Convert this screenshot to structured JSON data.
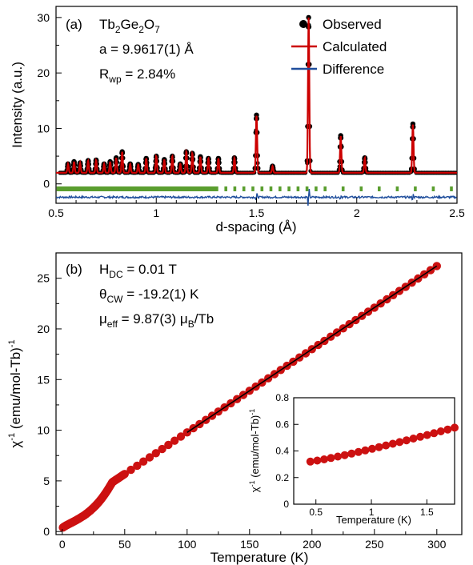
{
  "colors": {
    "observed": "#000000",
    "calculated": "#cc0000",
    "difference": "#1f4e9c",
    "bragg": "#5a9e2f",
    "chi_points": "#cc1111",
    "fit_line": "#000000"
  },
  "panel_a": {
    "label": "(a)",
    "compound": "Tb2Ge2O7",
    "lattice": "a = 9.9617(1) Å",
    "rwp": "Rwp = 2.84%",
    "legend": {
      "observed": "Observed",
      "calculated": "Calculated",
      "difference": "Difference"
    }
  },
  "panel_b": {
    "label": "(b)",
    "hdc": "HDC = 0.01 T",
    "theta": "θCW = -19.2(1) K",
    "mueff": "μeff = 9.87(3) μB/Tb"
  },
  "chart_data": [
    {
      "type": "line",
      "xlabel": "d-spacing (Å)",
      "ylabel": "Intensity (a.u.)",
      "xlim": [
        0.5,
        2.5
      ],
      "ylim": [
        -3.5,
        32
      ],
      "xticks": [
        0.5,
        1,
        1.5,
        2,
        2.5
      ],
      "yticks": [
        0,
        10,
        20,
        30
      ],
      "background": 2.0,
      "peaks": [
        {
          "d": 0.56,
          "h": 1.6
        },
        {
          "d": 0.59,
          "h": 2.0
        },
        {
          "d": 0.62,
          "h": 1.8
        },
        {
          "d": 0.66,
          "h": 2.2
        },
        {
          "d": 0.7,
          "h": 2.3
        },
        {
          "d": 0.74,
          "h": 1.6
        },
        {
          "d": 0.77,
          "h": 2.0
        },
        {
          "d": 0.8,
          "h": 2.7
        },
        {
          "d": 0.83,
          "h": 3.8
        },
        {
          "d": 0.87,
          "h": 1.6
        },
        {
          "d": 0.91,
          "h": 1.5
        },
        {
          "d": 0.95,
          "h": 2.6
        },
        {
          "d": 1.0,
          "h": 3.0
        },
        {
          "d": 1.04,
          "h": 2.4
        },
        {
          "d": 1.08,
          "h": 3.0
        },
        {
          "d": 1.12,
          "h": 1.6
        },
        {
          "d": 1.15,
          "h": 3.8
        },
        {
          "d": 1.18,
          "h": 3.5
        },
        {
          "d": 1.22,
          "h": 2.9
        },
        {
          "d": 1.26,
          "h": 2.6
        },
        {
          "d": 1.31,
          "h": 2.6
        },
        {
          "d": 1.39,
          "h": 2.7
        },
        {
          "d": 1.5,
          "h": 10.4
        },
        {
          "d": 1.58,
          "h": 1.2
        },
        {
          "d": 1.76,
          "h": 28.0
        },
        {
          "d": 1.92,
          "h": 6.7
        },
        {
          "d": 2.04,
          "h": 2.7
        },
        {
          "d": 2.28,
          "h": 8.8
        }
      ],
      "bragg_marks_y": -0.9,
      "difference_offset": -2.4,
      "series": [
        {
          "name": "Observed"
        },
        {
          "name": "Calculated"
        },
        {
          "name": "Difference"
        }
      ]
    },
    {
      "type": "scatter",
      "xlabel": "Temperature (K)",
      "ylabel": "χ-1 (emu/mol-Tb)-1",
      "xlim": [
        -5,
        320
      ],
      "ylim": [
        -0.3,
        27.5
      ],
      "xticks": [
        0,
        50,
        100,
        150,
        200,
        250,
        300
      ],
      "yticks": [
        0,
        5,
        10,
        15,
        20,
        25
      ],
      "curie_weiss": {
        "C": 12.18,
        "theta": -19.2
      },
      "fit_range": [
        100,
        300
      ],
      "low_t_dense_until": 50,
      "point_spacing_high": 5,
      "inset": {
        "xlabel": "Temperature (K)",
        "ylabel": "χ-1 (emu/mol-Tb)-1",
        "xlim": [
          0.3,
          1.75
        ],
        "ylim": [
          0,
          0.8
        ],
        "xticks": [
          0.5,
          1,
          1.5
        ],
        "yticks": [
          0,
          0.2,
          0.4,
          0.6,
          0.8
        ],
        "x_start": 0.45,
        "x_end": 1.75,
        "y_start": 0.32,
        "y_end": 0.575
      }
    }
  ]
}
